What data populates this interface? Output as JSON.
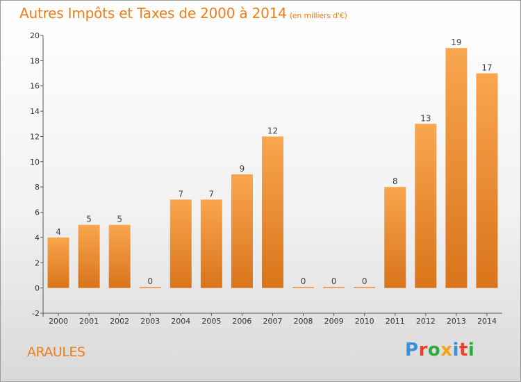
{
  "title": {
    "main": "Autres Impôts et Taxes de 2000 à 2014",
    "unit": "(en milliers d'€)"
  },
  "commune": "ARAULES",
  "logo": {
    "text": "Proxiti",
    "letter_colors": [
      "#3a8fd8",
      "#e8432a",
      "#2eaa3b",
      "#f0a516",
      "#3a8fd8",
      "#e8432a",
      "#2eaa3b"
    ]
  },
  "colors": {
    "bar_top": "#f9a64e",
    "bar_bottom": "#d9741a",
    "accent": "#ee7d1a"
  },
  "chart_data": {
    "type": "bar",
    "categories": [
      "2000",
      "2001",
      "2002",
      "2003",
      "2004",
      "2005",
      "2006",
      "2007",
      "2008",
      "2009",
      "2010",
      "2011",
      "2012",
      "2013",
      "2014"
    ],
    "values": [
      4,
      5,
      5,
      0,
      7,
      7,
      9,
      12,
      0,
      0,
      0,
      8,
      13,
      19,
      17
    ],
    "data_labels": [
      "4",
      "5",
      "5",
      "0",
      "7",
      "7",
      "9",
      "12",
      "0",
      "0",
      "0",
      "8",
      "13",
      "19",
      "17"
    ],
    "ylim": [
      -2,
      20
    ],
    "yticks": [
      "-2",
      "0",
      "2",
      "4",
      "6",
      "8",
      "10",
      "12",
      "14",
      "16",
      "18",
      "20"
    ],
    "grid": false,
    "xlabel": "",
    "ylabel": ""
  }
}
